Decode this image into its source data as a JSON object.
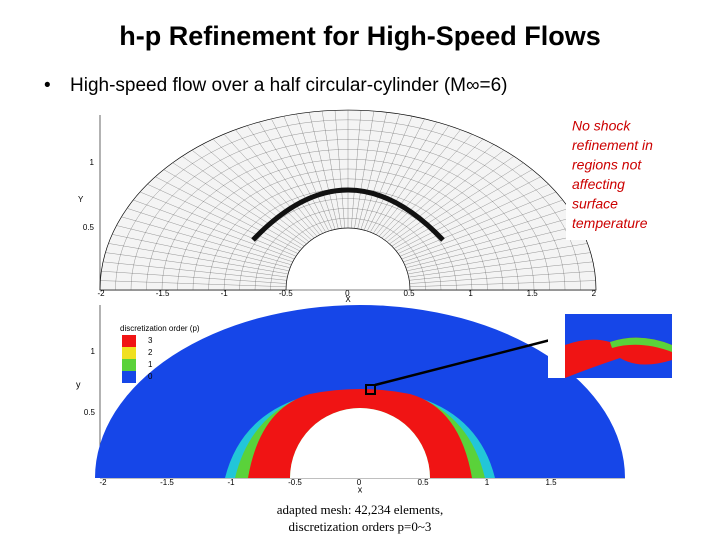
{
  "title": "h-p Refinement for High-Speed Flows",
  "bullet": "High-speed flow over a half circular-cylinder (M∞=6)",
  "annotation": [
    "No shock",
    "refinement in",
    "regions not",
    "affecting",
    "surface",
    "temperature"
  ],
  "caption": [
    "adapted mesh: 42,234 elements,",
    "discretization orders p=0~3"
  ],
  "mesh_plot": {
    "x_label": "X",
    "y_label": "Y",
    "x_ticks": [
      "-2",
      "-1.5",
      "-1",
      "-0.5",
      "0",
      "0.5",
      "1",
      "1.5",
      "2"
    ],
    "y_ticks": [
      "1",
      "0.5"
    ]
  },
  "order_plot": {
    "x_label": "x",
    "y_label": "y",
    "x_ticks": [
      "-2",
      "-1.5",
      "-1",
      "-0.5",
      "0",
      "0.5",
      "1",
      "1.5"
    ],
    "y_ticks": [
      "1",
      "0.5"
    ],
    "legend_title": "discretization order (p)",
    "legend_levels": [
      "3",
      "2",
      "1",
      "0"
    ]
  }
}
